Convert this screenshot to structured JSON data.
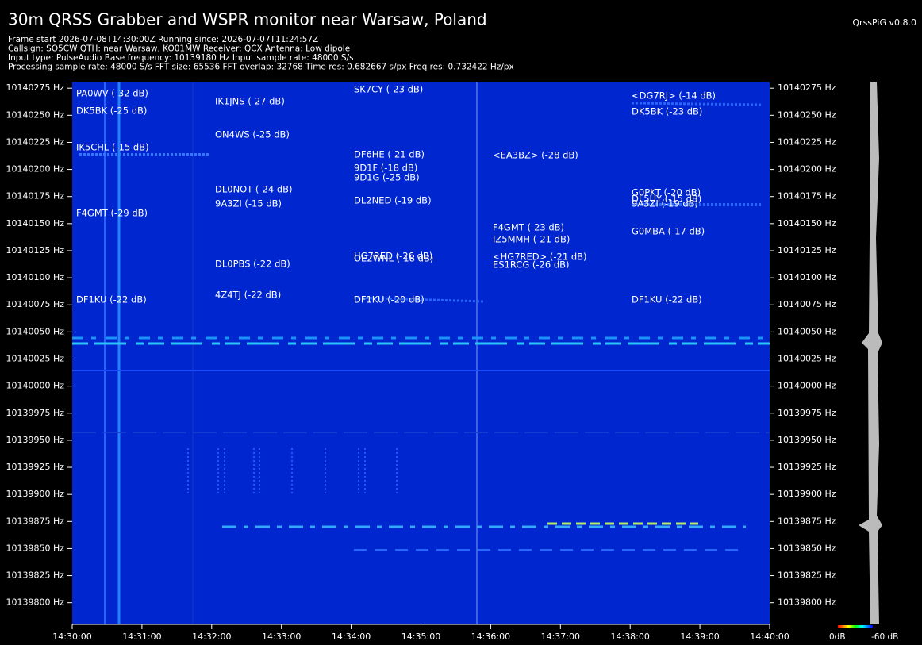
{
  "chart_data": {
    "type": "spectrogram",
    "title": "30m QRSS Grabber and WSPR monitor near Warsaw, Poland",
    "version": "QrssPiG v0.8.0",
    "info": [
      "Frame start 2026-07-08T14:30:00Z Running since: 2026-07-07T11:24:57Z",
      "Callsign: SO5CW QTH: near Warsaw, KO01MW Receiver: QCX Antenna: Low dipole",
      "Input type: PulseAudio Base frequency: 10139180 Hz Input sample rate: 48000 S/s",
      "Processing sample rate: 48000 S/s FFT size: 65536 FFT overlap: 32768 Time res: 0.682667 s/px Freq res: 0.732422 Hz/px"
    ],
    "ylim": [
      10139780,
      10140281
    ],
    "yticks": [
      {
        "value": 10140275,
        "label": "10140275 Hz"
      },
      {
        "value": 10140250,
        "label": "10140250 Hz"
      },
      {
        "value": 10140225,
        "label": "10140225 Hz"
      },
      {
        "value": 10140200,
        "label": "10140200 Hz"
      },
      {
        "value": 10140175,
        "label": "10140175 Hz"
      },
      {
        "value": 10140150,
        "label": "10140150 Hz"
      },
      {
        "value": 10140125,
        "label": "10140125 Hz"
      },
      {
        "value": 10140100,
        "label": "10140100 Hz"
      },
      {
        "value": 10140075,
        "label": "10140075 Hz"
      },
      {
        "value": 10140050,
        "label": "10140050 Hz"
      },
      {
        "value": 10140025,
        "label": "10140025 Hz"
      },
      {
        "value": 10140000,
        "label": "10140000 Hz"
      },
      {
        "value": 10139975,
        "label": "10139975 Hz"
      },
      {
        "value": 10139950,
        "label": "10139950 Hz"
      },
      {
        "value": 10139925,
        "label": "10139925 Hz"
      },
      {
        "value": 10139900,
        "label": "10139900 Hz"
      },
      {
        "value": 10139875,
        "label": "10139875 Hz"
      },
      {
        "value": 10139850,
        "label": "10139850 Hz"
      },
      {
        "value": 10139825,
        "label": "10139825 Hz"
      },
      {
        "value": 10139800,
        "label": "10139800 Hz"
      }
    ],
    "xticks": [
      "14:30:00",
      "14:31:00",
      "14:32:00",
      "14:33:00",
      "14:34:00",
      "14:35:00",
      "14:36:00",
      "14:37:00",
      "14:38:00",
      "14:39:00",
      "14:40:00"
    ],
    "colorbar_labels": [
      "0dB",
      "-60 dB"
    ],
    "annotations": [
      "PA0WV (-32 dB)",
      "DK5BK (-25 dB)",
      "IK5CHL (-15 dB)",
      "F4GMT (-29 dB)",
      "DF1KU (-22 dB)",
      "IK1JNS (-27 dB)",
      "ON4WS (-25 dB)",
      "DL0NOT (-24 dB)",
      "9A3ZI (-15 dB)",
      "DL0PBS (-22 dB)",
      "4Z4TJ (-22 dB)",
      "SK7CY (-23 dB)",
      "DF6HE (-21 dB)",
      "9D1F (-18 dB)",
      "9D1G (-25 dB)",
      "DL2NED (-19 dB)",
      "HG7RED (-26 dB)",
      "OE2WNL (-18 dB)",
      "DF1KU (-20 dB)",
      "<EA3BZ> (-28 dB)",
      "F4GMT (-23 dB)",
      "IZ5MMH (-21 dB)",
      "<HG7RED> (-21 dB)",
      "ES1RCG (-26 dB)",
      "<DG7RJ> (-14 dB)",
      "DK5BK (-23 dB)",
      "G0PKT (-20 dB)",
      "DL5UY (-15 dB)",
      "9A3ZI (-19 dB)",
      "G0MBA (-17 dB)",
      "DF1KU (-22 dB)"
    ]
  }
}
